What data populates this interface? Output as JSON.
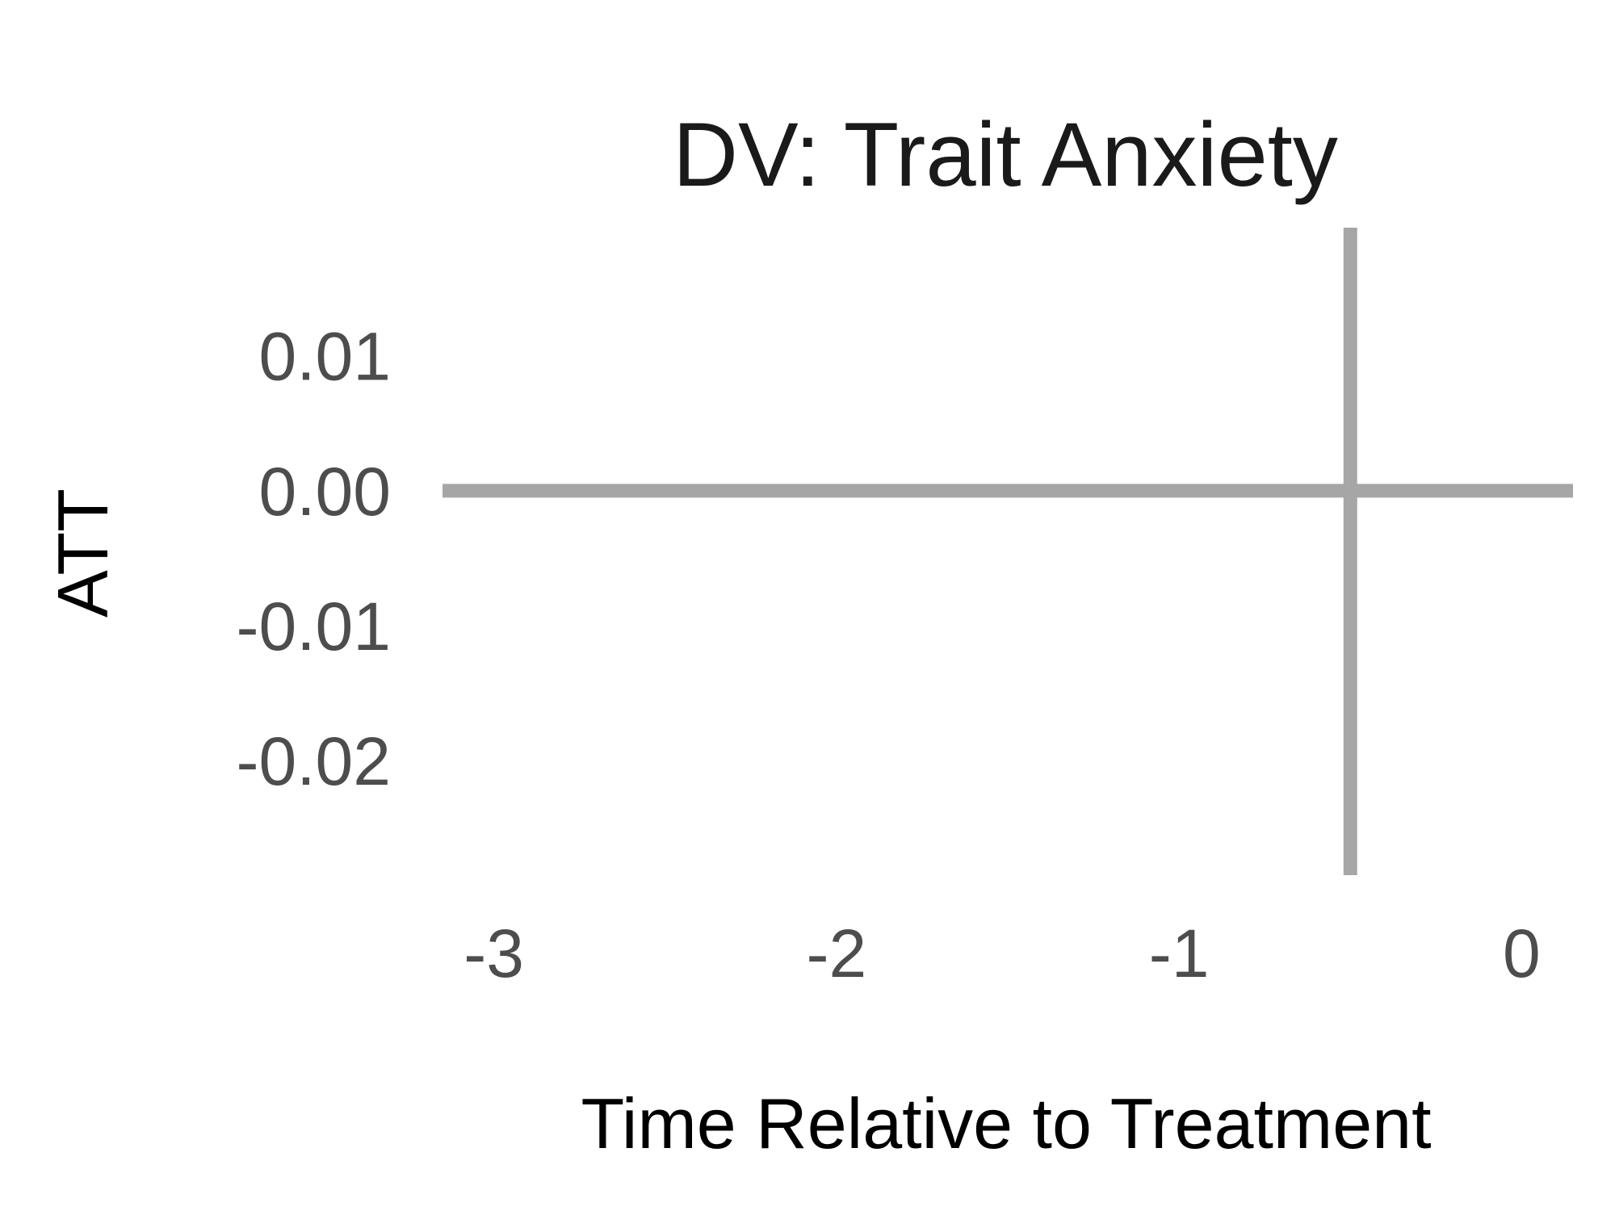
{
  "chart_data": {
    "type": "line",
    "title": "DV: Trait Anxiety",
    "xlabel": "Time Relative to Treatment",
    "ylabel": "ATT",
    "x_ticks": [
      "-3",
      "-2",
      "-1",
      "0"
    ],
    "x_tick_values": [
      -3,
      -2,
      -1,
      0
    ],
    "y_ticks": [
      "0.01",
      "0.00",
      "-0.01",
      "-0.02"
    ],
    "y_tick_values": [
      0.01,
      0.0,
      -0.01,
      -0.02
    ],
    "xlim": [
      -3.15,
      0.15
    ],
    "ylim": [
      -0.0285,
      0.0195
    ],
    "series": [],
    "reference_lines": [
      {
        "orientation": "horizontal",
        "value": 0.0
      },
      {
        "orientation": "vertical",
        "value": -0.5
      }
    ],
    "grid": false,
    "legend": "none",
    "colors": {
      "reference_line": "#a6a6a6",
      "tick_text": "#4d4d4d",
      "title_text": "#1a1a1a"
    }
  }
}
